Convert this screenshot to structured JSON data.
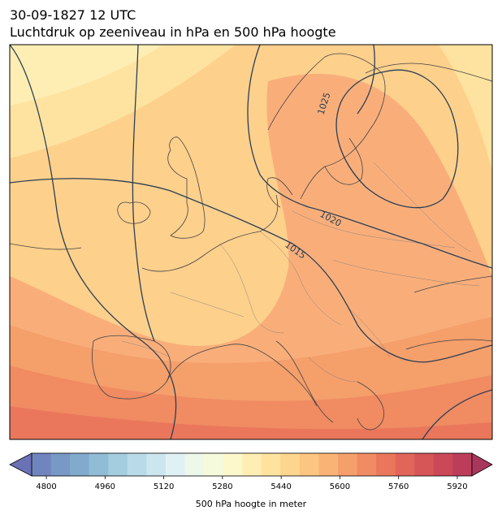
{
  "header": {
    "datetime": "30-09-1827 12 UTC",
    "title": "Luchtdruk op zeeniveau in hPa en 500 hPa hoogte"
  },
  "map": {
    "region": "Europe",
    "isobar_labels": [
      "1015",
      "1020",
      "1025"
    ],
    "colors": {
      "coast": "#444444",
      "border": "#777777",
      "isobar": "#2b3f55"
    }
  },
  "colorbar": {
    "label": "500 hPa hoogte in meter",
    "ticks": [
      "4800",
      "4960",
      "5120",
      "5280",
      "5440",
      "5600",
      "5760",
      "5920"
    ],
    "min": 4760,
    "max": 5960,
    "step": 40,
    "colors": [
      "#6a71b5",
      "#7085bd",
      "#7898c5",
      "#82aacd",
      "#91bcd6",
      "#a4cde0",
      "#b9dbe9",
      "#cce6ef",
      "#dff1f4",
      "#edf7ea",
      "#f6fadc",
      "#fdf7cc",
      "#feeeb4",
      "#fee39f",
      "#fdd58f",
      "#fcc581",
      "#f9b375",
      "#f59f6b",
      "#f08b62",
      "#ea775c",
      "#e16559",
      "#d65557",
      "#ca4858",
      "#bb3d5a",
      "#a8365d"
    ]
  }
}
